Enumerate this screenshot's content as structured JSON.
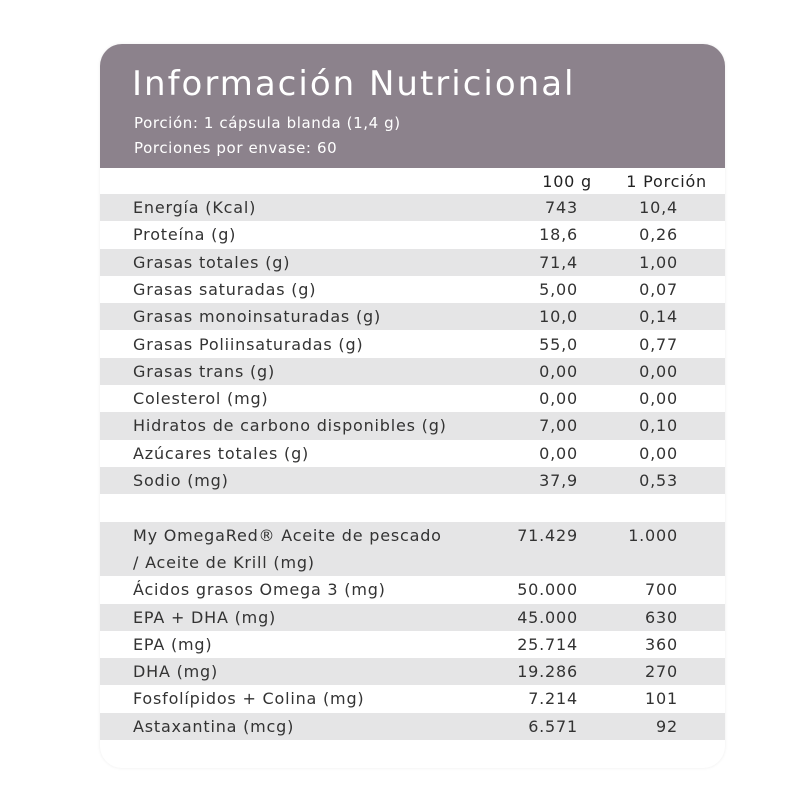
{
  "header": {
    "title": "Información Nutricional",
    "serving": "Porción: 1 cápsula blanda (1,4 g)",
    "servings": "Porciones por envase: 60"
  },
  "table": {
    "columns": [
      "100 g",
      "1 Porción"
    ],
    "rows": [
      [
        "Energía (Kcal)",
        "743",
        "10,4"
      ],
      [
        "Proteína (g)",
        "18,6",
        "0,26"
      ],
      [
        "Grasas totales (g)",
        "71,4",
        "1,00"
      ],
      [
        "Grasas saturadas (g)",
        "5,00",
        "0,07"
      ],
      [
        "Grasas monoinsaturadas (g)",
        "10,0",
        "0,14"
      ],
      [
        "Grasas Poliinsaturadas (g)",
        "55,0",
        "0,77"
      ],
      [
        "Grasas trans (g)",
        "0,00",
        "0,00"
      ],
      [
        "Colesterol (mg)",
        "0,00",
        "0,00"
      ],
      [
        "Hidratos de carbono disponibles (g)",
        "7,00",
        "0,10"
      ],
      [
        "Azúcares totales (g)",
        "0,00",
        "0,00"
      ],
      [
        "Sodio (mg)",
        "37,9",
        "0,53"
      ]
    ],
    "lipid_rows": [
      [
        [
          "My OmegaRed® Aceite de pescado",
          "/ Aceite de Krill (mg)"
        ],
        "71.429",
        "1.000"
      ],
      [
        "Ácidos grasos Omega 3 (mg)",
        "50.000",
        "700"
      ],
      [
        "EPA + DHA (mg)",
        "45.000",
        "630"
      ],
      [
        "EPA (mg)",
        "25.714",
        "360"
      ],
      [
        "DHA (mg)",
        "19.286",
        "270"
      ],
      [
        "Fosfolípidos + Colina (mg)",
        "7.214",
        "101"
      ],
      [
        "Astaxantina (mcg)",
        "6.571",
        "92"
      ]
    ]
  }
}
